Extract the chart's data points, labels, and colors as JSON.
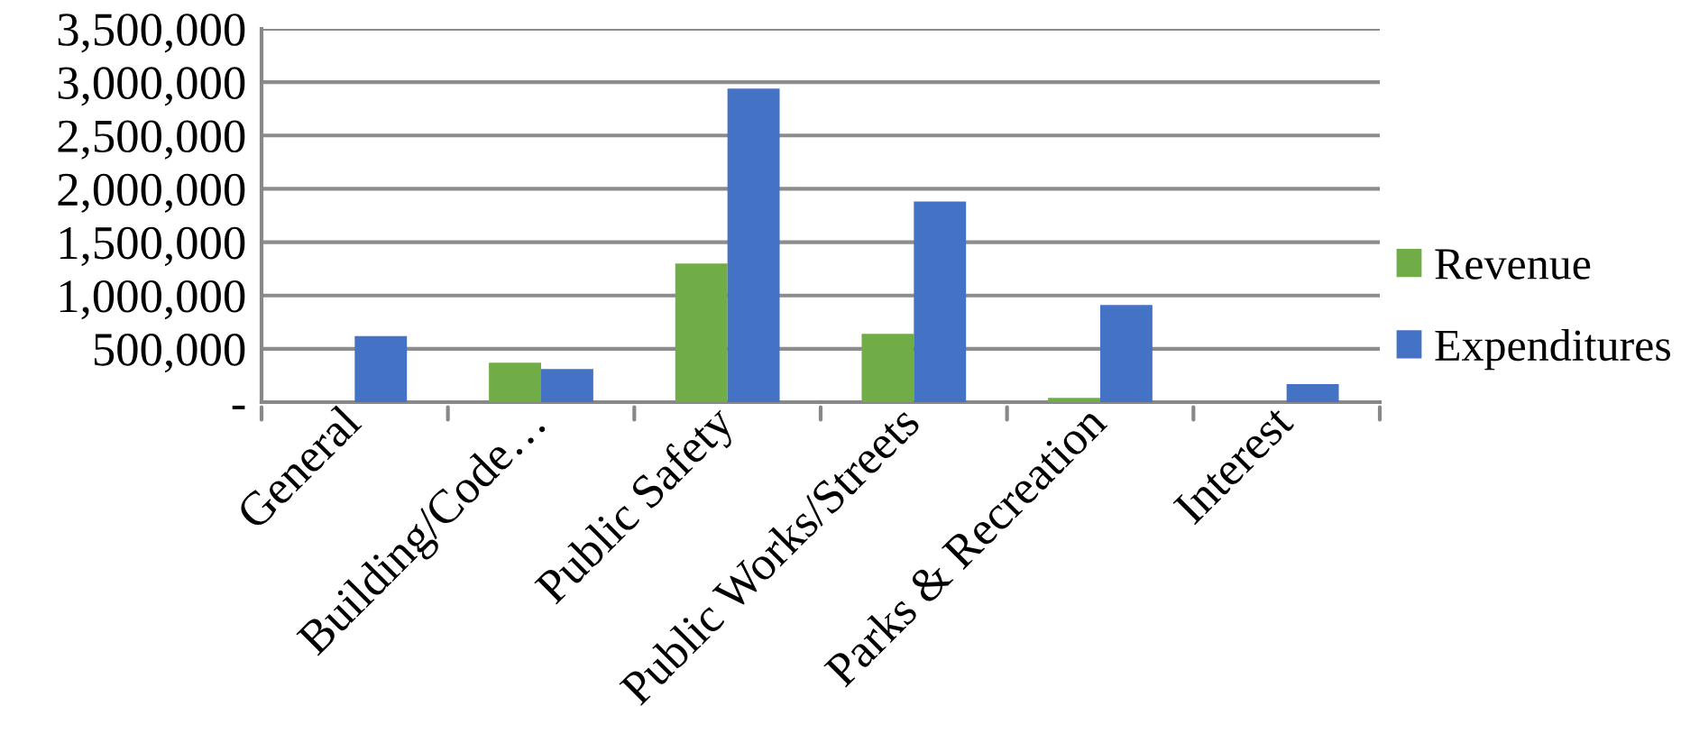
{
  "chart_data": {
    "type": "bar",
    "categories": [
      "General",
      "Building/Code…",
      "Public Safety",
      "Public Works/Streets",
      "Parks & Recreation",
      "Interest"
    ],
    "series": [
      {
        "name": "Revenue",
        "color": "#70ad47",
        "values": [
          null,
          370000,
          1300000,
          640000,
          40000,
          null
        ]
      },
      {
        "name": "Expenditures",
        "color": "#4472c4",
        "values": [
          620000,
          310000,
          2940000,
          1880000,
          910000,
          170000
        ]
      }
    ],
    "ylim": [
      0,
      3500000
    ],
    "yticks": [
      {
        "value": 0,
        "label": "-"
      },
      {
        "value": 500000,
        "label": "500,000"
      },
      {
        "value": 1000000,
        "label": "1,000,000"
      },
      {
        "value": 1500000,
        "label": "1,500,000"
      },
      {
        "value": 2000000,
        "label": "2,000,000"
      },
      {
        "value": 2500000,
        "label": "2,500,000"
      },
      {
        "value": 3000000,
        "label": "3,000,000"
      },
      {
        "value": 3500000,
        "label": "3,500,000"
      }
    ],
    "grid": "y",
    "legend": "right"
  }
}
